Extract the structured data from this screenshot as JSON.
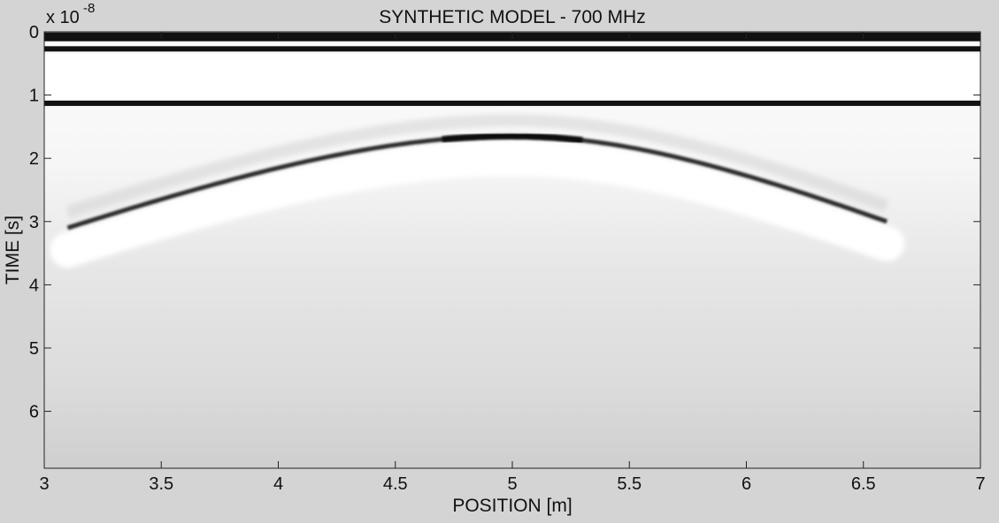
{
  "chart_data": {
    "type": "heatmap",
    "title": "SYNTHETIC MODEL - 700 MHz",
    "xlabel": "POSITION [m]",
    "ylabel": "TIME [s]",
    "y_exponent_base": "x 10",
    "y_exponent_power": "-8",
    "xlim": [
      3,
      7
    ],
    "ylim": [
      0,
      6.9
    ],
    "y_reversed": true,
    "colormap": "gray",
    "grid": false,
    "x_ticks": [
      3,
      3.5,
      4,
      4.5,
      5,
      5.5,
      6,
      6.5,
      7
    ],
    "x_tick_labels": [
      "3",
      "3.5",
      "4",
      "4.5",
      "5",
      "5.5",
      "6",
      "6.5",
      "7"
    ],
    "y_ticks": [
      0,
      1,
      2,
      3,
      4,
      5,
      6
    ],
    "y_tick_labels": [
      "0",
      "1",
      "2",
      "3",
      "4",
      "5",
      "6"
    ],
    "horizontal_reflections": [
      {
        "time": 0.08,
        "polarity": "black"
      },
      {
        "time": 0.27,
        "polarity": "black"
      },
      {
        "time": 1.13,
        "polarity": "black"
      }
    ],
    "hyperbola": {
      "apex_position": 5.0,
      "apex_time": 1.65,
      "left_end": [
        3.1,
        3.1
      ],
      "right_end": [
        6.6,
        3.0
      ]
    },
    "colors": {
      "background": "#d4d4d4",
      "reflection": "#111111",
      "plot_bright": "#ffffff"
    }
  }
}
